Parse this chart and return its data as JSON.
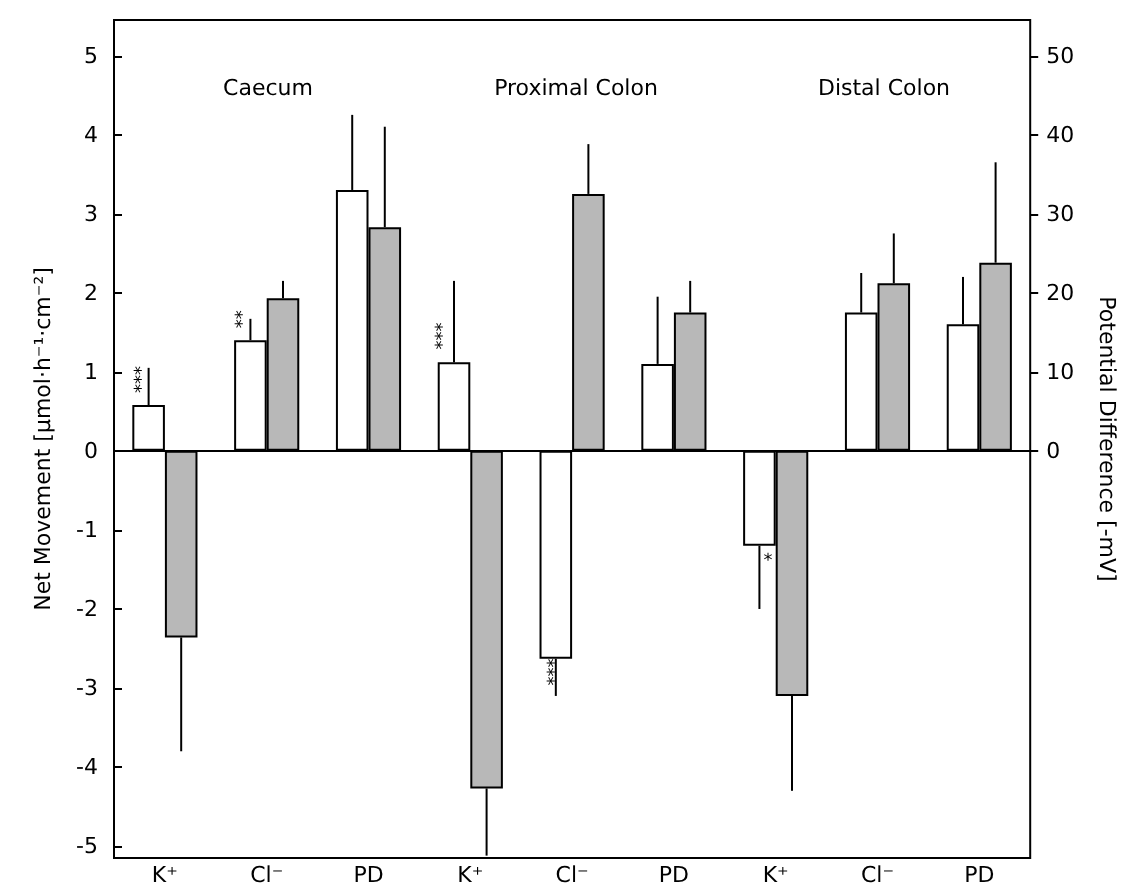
{
  "chart_data": {
    "type": "bar",
    "ylabel": "Net Movement [µmol·h⁻¹·cm⁻²]",
    "y2label": "Potential Difference [-mV]",
    "categories": [
      "K⁺",
      "Cl⁻",
      "PD",
      "K⁺",
      "Cl⁻",
      "PD",
      "K⁺",
      "Cl⁻",
      "PD"
    ],
    "ylim": [
      -5.15,
      5.45
    ],
    "yticks": [
      -5,
      -4,
      -3,
      -2,
      -1,
      0,
      1,
      2,
      3,
      4,
      5
    ],
    "y2lim": [
      -51.5,
      54.5
    ],
    "y2ticks": [
      0,
      10,
      20,
      30,
      40,
      50
    ],
    "series": [
      {
        "color": "#ffffff",
        "values": [
          0.58,
          1.4,
          null,
          1.12,
          -2.63,
          null,
          -1.2,
          1.75,
          null
        ],
        "errors": [
          [
            0.58,
            1.05
          ],
          [
            1.4,
            1.67
          ],
          null,
          [
            1.12,
            2.15
          ],
          [
            -3.1,
            -2.63
          ],
          null,
          [
            -2.0,
            -1.2
          ],
          [
            1.75,
            2.25
          ],
          null
        ]
      },
      {
        "color": "#b8b8b8",
        "values": [
          -2.36,
          1.93,
          null,
          -4.27,
          3.25,
          null,
          -3.1,
          2.12,
          null
        ],
        "errors": [
          [
            -3.8,
            -2.36
          ],
          [
            1.93,
            2.15
          ],
          null,
          [
            -5.12,
            -4.27
          ],
          [
            3.25,
            3.88
          ],
          null,
          [
            -4.3,
            -3.1
          ],
          [
            2.12,
            2.75
          ],
          null
        ]
      },
      {
        "color": "#ffffff",
        "axis": "y2",
        "values": [
          null,
          null,
          33,
          null,
          null,
          11,
          null,
          null,
          16
        ],
        "errors": [
          null,
          null,
          [
            33,
            42.5
          ],
          null,
          null,
          [
            11,
            19.5
          ],
          null,
          null,
          [
            16,
            22
          ]
        ]
      },
      {
        "color": "#b8b8b8",
        "axis": "y2",
        "values": [
          null,
          null,
          28.3,
          null,
          null,
          17.5,
          null,
          null,
          23.8
        ],
        "errors": [
          null,
          null,
          [
            28.3,
            41
          ],
          null,
          null,
          [
            17.5,
            21.5
          ],
          null,
          null,
          [
            23.8,
            36.5
          ]
        ]
      }
    ],
    "annotations": [
      "Caecum",
      "Proximal Colon",
      "Distal Colon",
      "***",
      "***",
      "*",
      {
        "text": "***",
        "x": "K⁺",
        "y": 0.58
      },
      {
        "text": "**",
        "x": "Cl⁻",
        "y": 1.4
      }
    ]
  }
}
